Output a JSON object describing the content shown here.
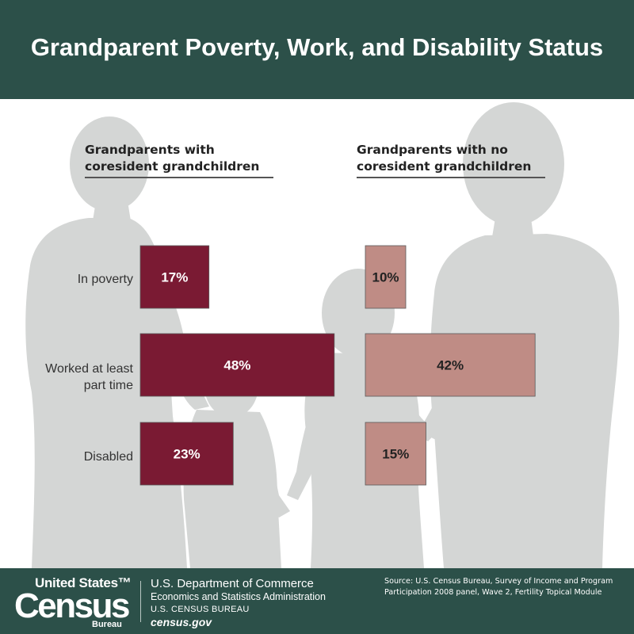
{
  "title": "Grandparent Poverty, Work, and Disability Status",
  "chart_data": {
    "type": "bar",
    "orientation": "horizontal",
    "unit": "%",
    "categories": [
      [
        "In poverty"
      ],
      [
        "Worked at least",
        "part time"
      ],
      [
        "Disabled"
      ]
    ],
    "series": [
      {
        "name": "Grandparents with coresident grandchildren",
        "title_lines": [
          "Grandparents with",
          "coresident grandchildren"
        ],
        "values": [
          17,
          48,
          23
        ],
        "labels": [
          "17%",
          "48%",
          "23%"
        ],
        "color": "#7a1a33",
        "label_color": "#ffffff"
      },
      {
        "name": "Grandparents with no coresident grandchildren",
        "title_lines": [
          "Grandparents with no",
          "coresident grandchildren"
        ],
        "values": [
          10,
          42,
          15
        ],
        "labels": [
          "10%",
          "42%",
          "15%"
        ],
        "color": "#bf8c85",
        "label_color": "#222222"
      }
    ],
    "xlim": [
      0,
      100
    ],
    "grid": false,
    "legend": "none"
  },
  "colors": {
    "header_bg": "#2c5049",
    "silhouette": "#d4d6d5"
  },
  "footer": {
    "logo": {
      "line1": "United States™",
      "line2": "Census",
      "line3": "Bureau"
    },
    "dept": "U.S. Department of Commerce",
    "esa": "Economics and Statistics Administration",
    "bureau": "U.S. CENSUS BUREAU",
    "site": "census.gov",
    "source": "Source: U.S. Census Bureau, Survey of Income and Program Participation 2008 panel, Wave 2, Fertility Topical Module"
  }
}
